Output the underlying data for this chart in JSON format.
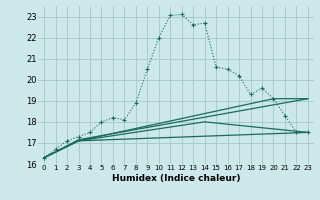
{
  "title": "",
  "xlabel": "Humidex (Indice chaleur)",
  "bg_color": "#cce8e8",
  "grid_color": "#aacccc",
  "line_color": "#1a6b5a",
  "xlim": [
    -0.5,
    23.5
  ],
  "ylim": [
    16,
    23.5
  ],
  "yticks": [
    16,
    17,
    18,
    19,
    20,
    21,
    22,
    23
  ],
  "xticks": [
    0,
    1,
    2,
    3,
    4,
    5,
    6,
    7,
    8,
    9,
    10,
    11,
    12,
    13,
    14,
    15,
    16,
    17,
    18,
    19,
    20,
    21,
    22,
    23
  ],
  "curve1_x": [
    0,
    1,
    2,
    3,
    4,
    5,
    6,
    7,
    8,
    9,
    10,
    11,
    12,
    13,
    14,
    15,
    16,
    17,
    18,
    19,
    20,
    21,
    22,
    23
  ],
  "curve1_y": [
    16.3,
    16.7,
    17.1,
    17.3,
    17.5,
    18.0,
    18.2,
    18.1,
    18.9,
    20.5,
    22.0,
    23.05,
    23.1,
    22.6,
    22.7,
    20.6,
    20.5,
    20.2,
    19.3,
    19.6,
    19.1,
    18.3,
    17.5,
    17.5
  ],
  "curve2_x": [
    0,
    3,
    14,
    23
  ],
  "curve2_y": [
    16.3,
    17.1,
    18.0,
    17.5
  ],
  "curve3_x": [
    0,
    3,
    23
  ],
  "curve3_y": [
    16.3,
    17.1,
    17.5
  ],
  "curve4_x": [
    0,
    3,
    23
  ],
  "curve4_y": [
    16.3,
    17.15,
    19.1
  ],
  "curve5_x": [
    0,
    3,
    20,
    23
  ],
  "curve5_y": [
    16.3,
    17.1,
    19.1,
    19.1
  ]
}
